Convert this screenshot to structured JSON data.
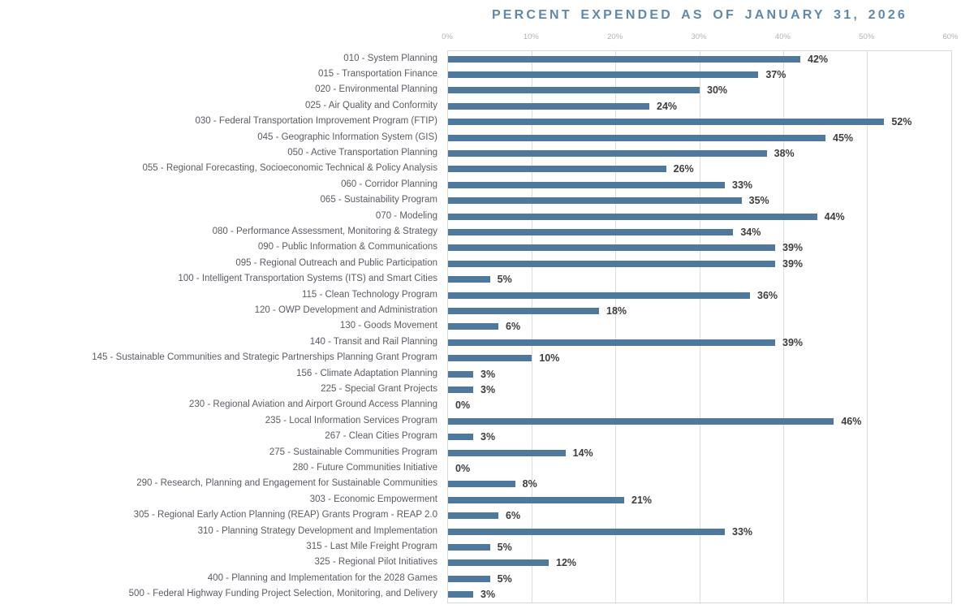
{
  "chart_data": {
    "type": "bar",
    "orientation": "horizontal",
    "title": "PERCENT EXPENDED AS OF JANUARY 31, 2026",
    "xlabel": "",
    "ylabel": "",
    "xlim": [
      0,
      60
    ],
    "x_ticks": [
      "0%",
      "10%",
      "20%",
      "30%",
      "40%",
      "50%",
      "60%"
    ],
    "grid": true,
    "legend": false,
    "categories": [
      "010 - System Planning",
      "015 - Transportation Finance",
      "020 - Environmental Planning",
      "025 - Air Quality and Conformity",
      "030 - Federal Transportation Improvement Program (FTIP)",
      "045 - Geographic Information System (GIS)",
      "050 - Active Transportation Planning",
      "055 - Regional Forecasting, Socioeconomic Technical & Policy Analysis",
      "060 - Corridor Planning",
      "065 - Sustainability Program",
      "070 - Modeling",
      "080 - Performance Assessment, Monitoring & Strategy",
      "090 - Public Information & Communications",
      "095 - Regional Outreach and Public Participation",
      "100 - Intelligent Transportation Systems (ITS) and Smart Cities",
      "115 - Clean Technology Program",
      "120 - OWP Development and Administration",
      "130 - Goods Movement",
      "140 - Transit and Rail Planning",
      "145 - Sustainable Communities and Strategic Partnerships Planning Grant Program",
      "156 - Climate Adaptation Planning",
      "225 - Special Grant Projects",
      "230 - Regional Aviation and Airport Ground Access Planning",
      "235 - Local Information Services Program",
      "267 - Clean Cities Program",
      "275 - Sustainable Communities Program",
      "280 - Future Communities Initiative",
      "290 - Research, Planning and Engagement for Sustainable Communities",
      "303 - Economic Empowerment",
      "305 - Regional Early Action Planning (REAP) Grants Program - REAP 2.0",
      "310 - Planning Strategy Development and Implementation",
      "315 - Last Mile Freight Program",
      "325 - Regional Pilot Initiatives",
      "400 - Planning and Implementation for the 2028 Games",
      "500 - Federal Highway Funding Project Selection, Monitoring, and Delivery"
    ],
    "values": [
      42,
      37,
      30,
      24,
      52,
      45,
      38,
      26,
      33,
      35,
      44,
      34,
      39,
      39,
      5,
      36,
      18,
      6,
      39,
      10,
      3,
      3,
      0,
      46,
      3,
      14,
      0,
      8,
      21,
      6,
      33,
      5,
      12,
      5,
      3
    ],
    "value_labels": [
      "42%",
      "37%",
      "30%",
      "24%",
      "52%",
      "45%",
      "38%",
      "26%",
      "33%",
      "35%",
      "44%",
      "34%",
      "39%",
      "39%",
      "5%",
      "36%",
      "18%",
      "6%",
      "39%",
      "10%",
      "3%",
      "3%",
      "0%",
      "46%",
      "3%",
      "14%",
      "0%",
      "8%",
      "21%",
      "6%",
      "33%",
      "5%",
      "12%",
      "5%",
      "3%"
    ]
  },
  "colors": {
    "bar": "#4e799c",
    "title": "#6089a9",
    "tick_label": "#b3b3b3",
    "category_label": "#585d64",
    "value_label": "#3d3d3d",
    "gridline": "#dcdcdc",
    "plot_border": "#d9d9d9",
    "background": "#ffffff"
  }
}
